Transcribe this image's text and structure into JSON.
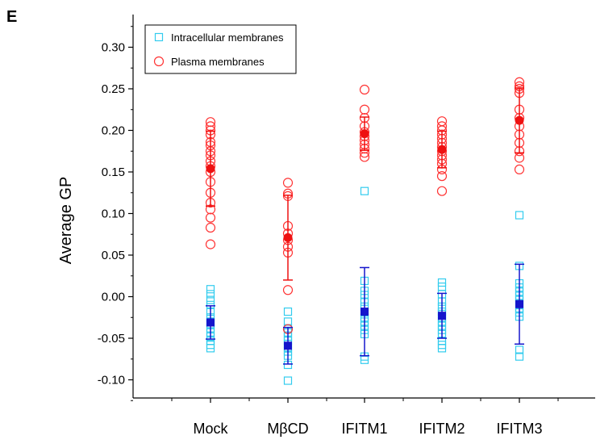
{
  "panel_label": "E",
  "chart_data": {
    "type": "scatter",
    "title": "",
    "xlabel": "",
    "ylabel": "Average GP",
    "ylim": [
      -0.13,
      0.33
    ],
    "y_ticks": [
      "-0.10",
      "-0.05",
      "0.00",
      "0.05",
      "0.10",
      "0.15",
      "0.20",
      "0.25",
      "0.30"
    ],
    "y_tick_values": [
      -0.1,
      -0.05,
      0.0,
      0.05,
      0.1,
      0.15,
      0.2,
      0.25,
      0.3
    ],
    "categories": [
      "Mock",
      "MβCD",
      "IFITM1",
      "IFITM2",
      "IFITM3"
    ],
    "legend_placement": "top-left",
    "grid": false,
    "series": [
      {
        "name": "Intracellular membranes",
        "marker": "square",
        "color": "#33ccee",
        "mean_color": "#1515cc",
        "points": [
          [
            -0.062,
            -0.058,
            -0.053,
            -0.048,
            -0.043,
            -0.038,
            -0.033,
            -0.03,
            -0.025,
            -0.018,
            -0.01,
            -0.004,
            0.003,
            0.009
          ],
          [
            -0.101,
            -0.082,
            -0.071,
            -0.066,
            -0.061,
            -0.057,
            -0.053,
            -0.048,
            -0.043,
            -0.038,
            -0.03,
            -0.018
          ],
          [
            -0.076,
            -0.072,
            -0.045,
            -0.04,
            -0.035,
            -0.03,
            -0.025,
            -0.019,
            -0.012,
            -0.006,
            0.002,
            0.007,
            0.019,
            0.127
          ],
          [
            -0.062,
            -0.058,
            -0.053,
            -0.045,
            -0.04,
            -0.035,
            -0.03,
            -0.025,
            -0.021,
            -0.018,
            -0.012,
            -0.006,
            0.003,
            0.012,
            0.017
          ],
          [
            -0.072,
            -0.064,
            -0.024,
            -0.019,
            -0.014,
            -0.009,
            -0.004,
            0.001,
            0.006,
            0.011,
            0.016,
            0.037,
            0.098
          ]
        ],
        "mean": [
          -0.031,
          -0.059,
          -0.018,
          -0.023,
          -0.009
        ],
        "sd": [
          0.02,
          0.022,
          0.053,
          0.027,
          0.048
        ]
      },
      {
        "name": "Plasma membranes",
        "marker": "circle",
        "color": "#ff3333",
        "mean_color": "#ee1111",
        "points": [
          [
            0.063,
            0.083,
            0.095,
            0.105,
            0.113,
            0.125,
            0.138,
            0.15,
            0.157,
            0.163,
            0.17,
            0.175,
            0.182,
            0.186,
            0.195,
            0.2,
            0.205,
            0.21
          ],
          [
            0.008,
            -0.039,
            0.053,
            0.06,
            0.068,
            0.076,
            0.085,
            0.121,
            0.124,
            0.137
          ],
          [
            0.168,
            0.173,
            0.178,
            0.183,
            0.188,
            0.193,
            0.198,
            0.205,
            0.215,
            0.225,
            0.249
          ],
          [
            0.127,
            0.145,
            0.153,
            0.16,
            0.165,
            0.17,
            0.175,
            0.18,
            0.185,
            0.19,
            0.195,
            0.2,
            0.205,
            0.211
          ],
          [
            0.153,
            0.167,
            0.175,
            0.185,
            0.195,
            0.205,
            0.215,
            0.225,
            0.245,
            0.25,
            0.253,
            0.258
          ]
        ],
        "mean": [
          0.154,
          0.071,
          0.196,
          0.177,
          0.212
        ],
        "sd": [
          0.045,
          0.051,
          0.02,
          0.022,
          0.039
        ]
      }
    ]
  }
}
